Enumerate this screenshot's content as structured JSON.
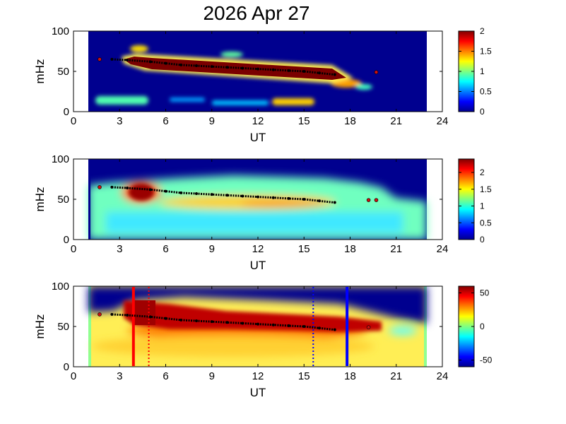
{
  "title": "2026 Apr 27",
  "chart_data": [
    {
      "type": "heatmap",
      "title": "2026 Apr 27",
      "xlabel": "UT",
      "ylabel": "mHz",
      "xlim": [
        0,
        24
      ],
      "ylim": [
        0,
        100
      ],
      "xticks": [
        "0",
        "3",
        "6",
        "9",
        "12",
        "15",
        "18",
        "21",
        "24"
      ],
      "yticks": [
        "0",
        "50",
        "100"
      ],
      "data_extent_x": [
        1,
        23
      ],
      "colorbar": {
        "range": [
          0,
          2
        ],
        "ticks": [
          "0",
          "0.5",
          "1",
          "1.5",
          "2"
        ]
      },
      "colors": {
        "low": "#00008f",
        "high": "#800000",
        "mid": "#80ff80"
      },
      "ridge_line": [
        [
          2.5,
          65
        ],
        [
          3.5,
          64
        ],
        [
          5,
          62
        ],
        [
          6,
          60
        ],
        [
          7,
          58
        ],
        [
          8,
          57
        ],
        [
          9,
          56
        ],
        [
          10,
          55
        ],
        [
          11,
          54
        ],
        [
          12,
          53
        ],
        [
          13,
          52
        ],
        [
          14,
          51
        ],
        [
          15,
          50
        ],
        [
          16,
          48
        ],
        [
          17,
          46
        ]
      ],
      "isolated_points": [
        [
          1.7,
          65
        ],
        [
          19.7,
          49
        ]
      ],
      "blobs": [
        {
          "x": [
            3.8,
            17
          ],
          "y": [
            48,
            68
          ],
          "level": 2.0
        },
        {
          "x": [
            4.5,
            5.2
          ],
          "y": [
            77,
            80
          ],
          "level": 1.2
        },
        {
          "x": [
            10,
            11
          ],
          "y": [
            70,
            72
          ],
          "level": 0.9
        },
        {
          "x": [
            1,
            4
          ],
          "y": [
            12,
            18
          ],
          "level": 1.0
        },
        {
          "x": [
            13,
            15
          ],
          "y": [
            10,
            14
          ],
          "level": 1.0
        },
        {
          "x": [
            17,
            19
          ],
          "y": [
            30,
            36
          ],
          "level": 1.1
        }
      ]
    },
    {
      "type": "heatmap",
      "xlabel": "UT",
      "ylabel": "mHz",
      "xlim": [
        0,
        24
      ],
      "ylim": [
        0,
        100
      ],
      "xticks": [
        "0",
        "3",
        "6",
        "9",
        "12",
        "15",
        "18",
        "21",
        "24"
      ],
      "yticks": [
        "0",
        "50",
        "100"
      ],
      "data_extent_x": [
        1,
        23
      ],
      "colorbar": {
        "range": [
          0,
          2.4
        ],
        "ticks": [
          "0",
          "0.5",
          "1",
          "1.5",
          "2"
        ]
      },
      "ridge_line": [
        [
          2.5,
          65
        ],
        [
          3.5,
          64
        ],
        [
          5,
          62
        ],
        [
          6,
          60
        ],
        [
          7,
          58
        ],
        [
          8,
          57
        ],
        [
          9,
          56
        ],
        [
          10,
          55
        ],
        [
          11,
          54
        ],
        [
          12,
          53
        ],
        [
          13,
          52
        ],
        [
          14,
          51
        ],
        [
          15,
          50
        ],
        [
          16,
          48
        ],
        [
          17,
          46
        ]
      ],
      "isolated_points": [
        [
          1.7,
          65
        ],
        [
          19.2,
          49
        ],
        [
          19.7,
          49
        ]
      ],
      "blobs": [
        {
          "x": [
            3.6,
            5
          ],
          "y": [
            52,
            70
          ],
          "level": 2.3
        },
        {
          "x": [
            8,
            16
          ],
          "y": [
            40,
            50
          ],
          "level": 1.6
        },
        {
          "x": [
            2,
            20
          ],
          "y": [
            20,
            60
          ],
          "level": 1.2
        }
      ]
    },
    {
      "type": "heatmap",
      "xlabel": "UT",
      "ylabel": "mHz",
      "xlim": [
        0,
        24
      ],
      "ylim": [
        0,
        100
      ],
      "xticks": [
        "0",
        "3",
        "6",
        "9",
        "12",
        "15",
        "18",
        "21",
        "24"
      ],
      "yticks": [
        "0",
        "50",
        "100"
      ],
      "data_extent_x": [
        1,
        23
      ],
      "colorbar": {
        "range": [
          -60,
          60
        ],
        "ticks": [
          "-50",
          "0",
          "50"
        ]
      },
      "ridge_line": [
        [
          2.5,
          65
        ],
        [
          3.5,
          64
        ],
        [
          5,
          62
        ],
        [
          6,
          60
        ],
        [
          7,
          58
        ],
        [
          8,
          57
        ],
        [
          9,
          56
        ],
        [
          10,
          55
        ],
        [
          11,
          54
        ],
        [
          12,
          53
        ],
        [
          13,
          52
        ],
        [
          14,
          51
        ],
        [
          15,
          50
        ],
        [
          16,
          48
        ],
        [
          17,
          46
        ]
      ],
      "isolated_points": [
        [
          1.7,
          65
        ],
        [
          19.2,
          49
        ]
      ],
      "vertical_lines": [
        {
          "x": 3.9,
          "color": "#ff0000",
          "style": "solid"
        },
        {
          "x": 4.9,
          "color": "#ff0000",
          "style": "dotted"
        },
        {
          "x": 15.6,
          "color": "#0000ff",
          "style": "dotted"
        },
        {
          "x": 17.8,
          "color": "#0000ff",
          "style": "solid"
        }
      ]
    }
  ]
}
